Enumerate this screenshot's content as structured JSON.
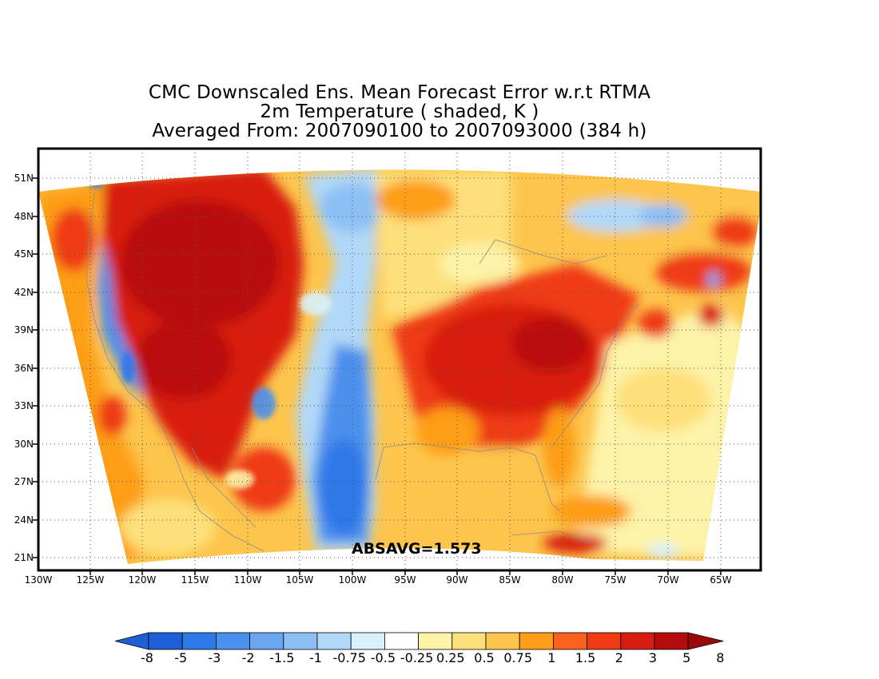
{
  "title": {
    "line1": "CMC Downscaled Ens. Mean Forecast Error w.r.t RTMA",
    "line2": "2m Temperature ( shaded, K )",
    "line3": "Averaged From: 2007090100 to 2007093000 (384 h)"
  },
  "annotation": "ABSAVG=1.573",
  "lat_ticks": [
    "51N",
    "48N",
    "45N",
    "42N",
    "39N",
    "36N",
    "33N",
    "30N",
    "27N",
    "24N",
    "21N"
  ],
  "lon_ticks": [
    "130W",
    "125W",
    "120W",
    "115W",
    "110W",
    "105W",
    "100W",
    "95W",
    "90W",
    "85W",
    "80W",
    "75W",
    "70W",
    "65W"
  ],
  "colorbar": {
    "labels": [
      "-8",
      "-5",
      "-3",
      "-2",
      "-1.5",
      "-1",
      "-0.75",
      "-0.5",
      "-0.25",
      "0.25",
      "0.5",
      "0.75",
      "1",
      "1.5",
      "2",
      "3",
      "5",
      "8"
    ],
    "colors": [
      "#1e5fd8",
      "#2f78e8",
      "#4b90ec",
      "#6aa6f0",
      "#8cc0f5",
      "#b1d8f8",
      "#d8f1fb",
      "#ffffff",
      "#fdf3a8",
      "#fde07a",
      "#fdc54c",
      "#fd9e18",
      "#f9621a",
      "#ef3a14",
      "#d81c10",
      "#b40c0c"
    ],
    "lower_arrow_color": "#1e5fd8",
    "upper_arrow_color": "#9b0a0a"
  }
}
